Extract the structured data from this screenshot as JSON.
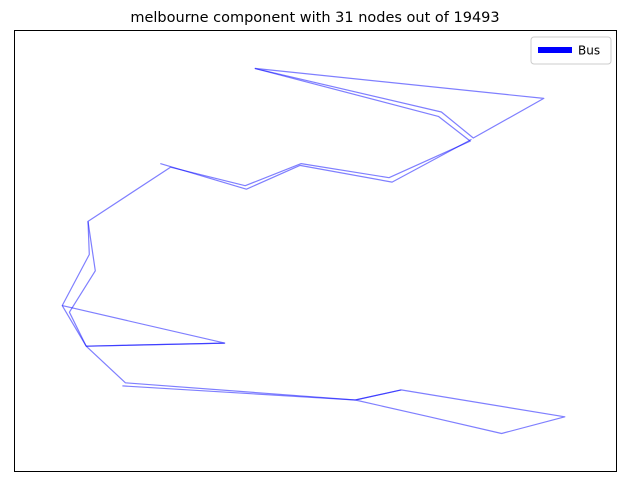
{
  "chart_data": {
    "type": "line",
    "title": "melbourne component with 31 nodes out of 19493",
    "xlabel": "",
    "ylabel": "",
    "xlim": [
      0,
      1
    ],
    "ylim": [
      0,
      1
    ],
    "axis_ticks": false,
    "grid": false,
    "legend_position": "top-right",
    "series": [
      {
        "name": "Bus",
        "color": "#0000ff",
        "line_alpha": 0.5,
        "segments": [
          [
            [
              0.4,
              0.913
            ],
            [
              0.705,
              0.804
            ],
            [
              0.758,
              0.748
            ],
            [
              0.623,
              0.665
            ],
            [
              0.477,
              0.697
            ],
            [
              0.384,
              0.647
            ],
            [
              0.26,
              0.689
            ],
            [
              0.123,
              0.566
            ],
            [
              0.135,
              0.454
            ],
            [
              0.092,
              0.36
            ],
            [
              0.12,
              0.283
            ],
            [
              0.185,
              0.2
            ],
            [
              0.567,
              0.161
            ],
            [
              0.69,
              0.123
            ],
            [
              0.81,
              0.085
            ],
            [
              0.915,
              0.123
            ],
            [
              0.643,
              0.184
            ],
            [
              0.567,
              0.161
            ]
          ],
          [
            [
              0.4,
              0.913
            ],
            [
              0.71,
              0.814
            ],
            [
              0.763,
              0.755
            ],
            [
              0.88,
              0.845
            ],
            [
              0.4,
              0.913
            ]
          ],
          [
            [
              0.123,
              0.566
            ],
            [
              0.125,
              0.491
            ],
            [
              0.08,
              0.375
            ],
            [
              0.12,
              0.283
            ]
          ],
          [
            [
              0.08,
              0.375
            ],
            [
              0.35,
              0.29
            ],
            [
              0.12,
              0.283
            ]
          ],
          [
            [
              0.243,
              0.697
            ],
            [
              0.386,
              0.639
            ],
            [
              0.475,
              0.693
            ],
            [
              0.628,
              0.655
            ],
            [
              0.76,
              0.752
            ]
          ],
          [
            [
              0.12,
              0.283
            ],
            [
              0.35,
              0.29
            ]
          ],
          [
            [
              0.18,
              0.193
            ],
            [
              0.567,
              0.161
            ]
          ],
          [
            [
              0.567,
              0.161
            ],
            [
              0.643,
              0.184
            ]
          ]
        ]
      }
    ]
  }
}
